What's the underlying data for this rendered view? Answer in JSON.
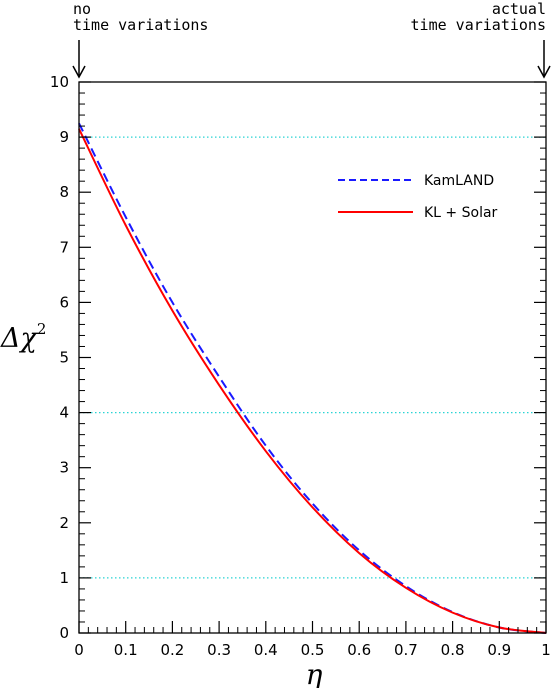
{
  "chart_data": {
    "type": "line",
    "xlabel": "η",
    "ylabel": "Δχ",
    "ylabel_sup": "2",
    "xlim": [
      0,
      1
    ],
    "ylim": [
      0,
      10
    ],
    "x_ticks": [
      "0",
      "0.1",
      "0.2",
      "0.3",
      "0.4",
      "0.5",
      "0.6",
      "0.7",
      "0.8",
      "0.9",
      "1"
    ],
    "y_ticks": [
      "0",
      "1",
      "2",
      "3",
      "4",
      "5",
      "6",
      "7",
      "8",
      "9",
      "10"
    ],
    "reference_lines_y": [
      1,
      4,
      9
    ],
    "series": [
      {
        "name": "KamLAND",
        "color": "#1a1aff",
        "style": "dashed",
        "x": [
          0,
          0.1,
          0.2,
          0.3,
          0.4,
          0.5,
          0.6,
          0.7,
          0.8,
          0.9,
          1.0
        ],
        "y": [
          9.25,
          7.55,
          6.0,
          4.65,
          3.4,
          2.35,
          1.5,
          0.85,
          0.38,
          0.1,
          0.0
        ]
      },
      {
        "name": "KL + Solar",
        "color": "#ff0000",
        "style": "solid",
        "x": [
          0,
          0.1,
          0.2,
          0.3,
          0.4,
          0.5,
          0.6,
          0.7,
          0.8,
          0.9,
          1.0
        ],
        "y": [
          9.15,
          7.4,
          5.85,
          4.5,
          3.3,
          2.28,
          1.45,
          0.82,
          0.37,
          0.1,
          0.0
        ]
      }
    ],
    "annotations": {
      "left": [
        "no",
        "time variations"
      ],
      "right": [
        "actual",
        "time variations"
      ]
    }
  }
}
